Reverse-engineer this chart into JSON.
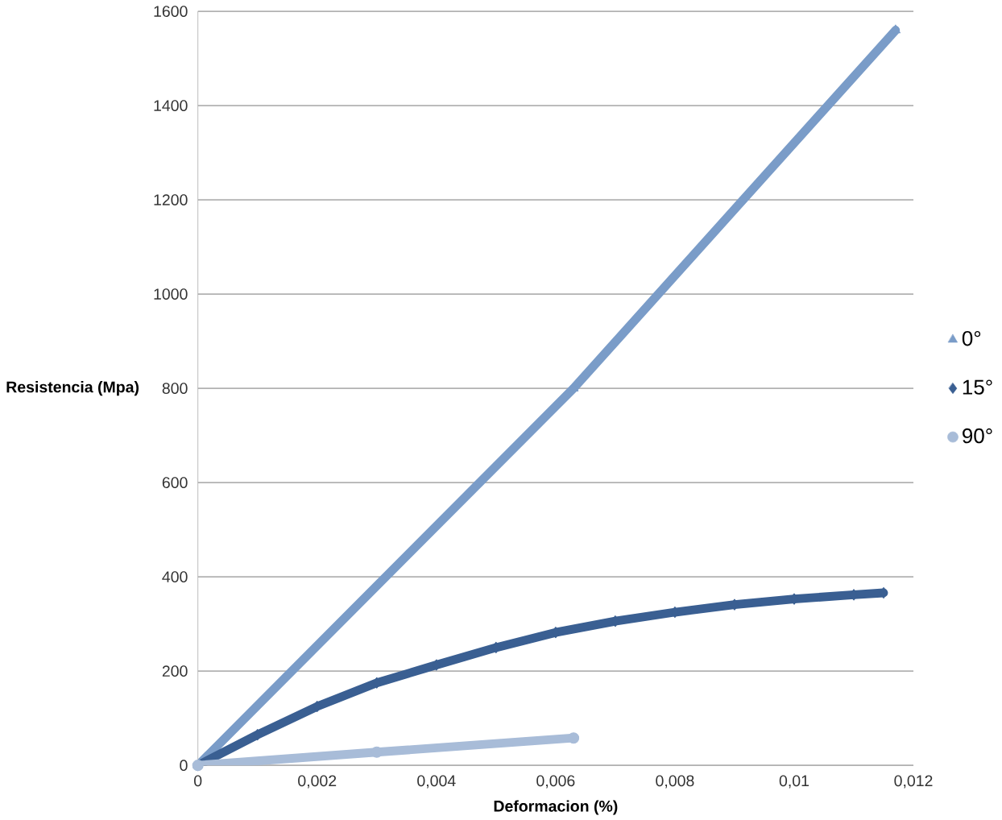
{
  "chart_data": {
    "type": "line",
    "xlabel": "Deformacion (%)",
    "ylabel": "Resistencia (Mpa)",
    "xlim": [
      0,
      0.012
    ],
    "ylim": [
      0,
      1600
    ],
    "xticks": [
      {
        "value": 0,
        "label": "0"
      },
      {
        "value": 0.002,
        "label": "0,002"
      },
      {
        "value": 0.004,
        "label": "0,004"
      },
      {
        "value": 0.006,
        "label": "0,006"
      },
      {
        "value": 0.008,
        "label": "0,008"
      },
      {
        "value": 0.01,
        "label": "0,01"
      },
      {
        "value": 0.012,
        "label": "0,012"
      }
    ],
    "yticks": [
      0,
      200,
      400,
      600,
      800,
      1000,
      1200,
      1400,
      1600
    ],
    "grid": "y",
    "legend": "right",
    "series": [
      {
        "name": "0°",
        "color": "#7a9cc8",
        "marker": "triangle",
        "x": [
          0,
          0.0063,
          0.0117
        ],
        "values": [
          0,
          800,
          1560
        ]
      },
      {
        "name": "15°",
        "color": "#3a5f92",
        "marker": "diamond",
        "x": [
          0,
          0.001,
          0.002,
          0.003,
          0.004,
          0.005,
          0.006,
          0.007,
          0.008,
          0.009,
          0.01,
          0.011,
          0.0115
        ],
        "values": [
          0,
          65,
          125,
          175,
          213,
          250,
          282,
          306,
          325,
          341,
          353,
          362,
          366
        ]
      },
      {
        "name": "90°",
        "color": "#a8bcd8",
        "marker": "circle",
        "x": [
          0,
          0.003,
          0.0063
        ],
        "values": [
          0,
          28,
          58
        ]
      }
    ]
  }
}
